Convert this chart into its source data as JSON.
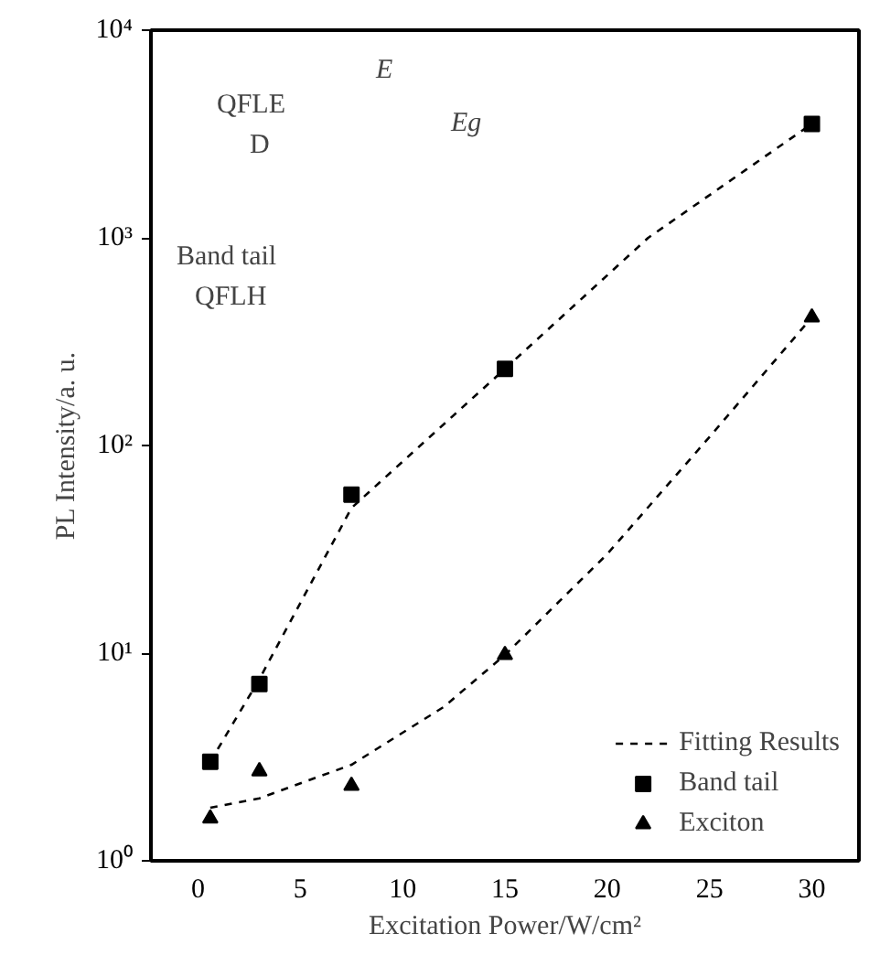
{
  "chart_data": {
    "type": "scatter",
    "xlabel": "Excitation Power/W/cm²",
    "ylabel": "PL Intensity/a. u.",
    "annotations": [
      "QFLE",
      "D",
      "E",
      "Eg",
      "Band tail",
      "QFLH"
    ],
    "series": [
      {
        "name": "Fitting Results",
        "type": "line",
        "line_style": "dashed",
        "marker": "none",
        "color": "#000000",
        "x": [
          0.6,
          3,
          7.5,
          15,
          22,
          30
        ],
        "values": [
          3.0,
          7.5,
          50,
          234,
          1000,
          3540
        ]
      },
      {
        "type": "line",
        "line_style": "dashed",
        "marker": "none",
        "color": "#000000",
        "x": [
          0.6,
          3,
          7.5,
          12,
          15,
          20,
          25,
          30
        ],
        "values": [
          1.8,
          2.0,
          2.9,
          5.5,
          9.8,
          30,
          110,
          414
        ]
      },
      {
        "name": "Band tail",
        "type": "scatter",
        "marker": "square",
        "color": "#000000",
        "x": [
          0.6,
          3,
          7.5,
          15,
          30
        ],
        "values": [
          3.0,
          7.1,
          58,
          234,
          3540
        ]
      },
      {
        "name": "Exciton",
        "type": "scatter",
        "marker": "triangle",
        "color": "#000000",
        "x": [
          0.6,
          3,
          7.5,
          15,
          30
        ],
        "values": [
          1.6,
          2.7,
          2.3,
          9.8,
          414
        ]
      }
    ],
    "log": "y",
    "grid": false,
    "legend": "bottom right",
    "xlim": [
      -2.3,
      32.3
    ],
    "xticks": [
      0,
      5,
      10,
      15,
      20,
      25,
      30
    ],
    "ylim": [
      1,
      10000
    ],
    "yticks": [
      {
        "value": 1,
        "label": "10⁰"
      },
      {
        "value": 10,
        "label": "10¹"
      },
      {
        "value": 100,
        "label": "10²"
      },
      {
        "value": 1000,
        "label": "10³"
      },
      {
        "value": 10000,
        "label": "10⁴"
      }
    ]
  }
}
